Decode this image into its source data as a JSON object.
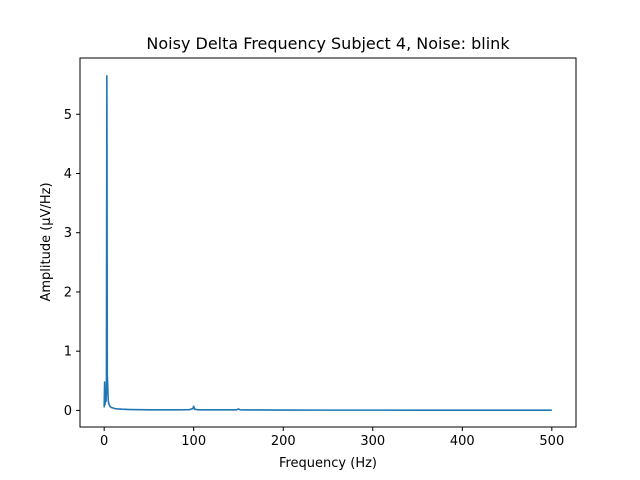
{
  "chart_data": {
    "type": "line",
    "title": "Noisy Delta Frequency Subject 4, Noise: blink",
    "xlabel": "Frequency (Hz)",
    "ylabel": "Amplitude (μV/Hz)",
    "xlim": [
      -27,
      527
    ],
    "ylim": [
      -0.28,
      5.95
    ],
    "xticks": [
      0,
      100,
      200,
      300,
      400,
      500
    ],
    "yticks": [
      0,
      1,
      2,
      3,
      4,
      5
    ],
    "grid": false,
    "legend": "none",
    "series": [
      {
        "color": "#1f77b4",
        "x": [
          0,
          0.5,
          1,
          1.5,
          2,
          2.5,
          3,
          3.5,
          4,
          4.5,
          5,
          6,
          7,
          8,
          10,
          12,
          15,
          20,
          30,
          40,
          50,
          60,
          80,
          95,
          99,
          100,
          101,
          105,
          120,
          130,
          140,
          148,
          150,
          152,
          160,
          200,
          250,
          300,
          350,
          400,
          450,
          500
        ],
        "y": [
          0.05,
          0.48,
          0.1,
          0.35,
          0.15,
          0.3,
          5.65,
          0.6,
          0.4,
          0.18,
          0.12,
          0.08,
          0.06,
          0.05,
          0.04,
          0.03,
          0.025,
          0.02,
          0.015,
          0.012,
          0.01,
          0.01,
          0.01,
          0.012,
          0.03,
          0.07,
          0.02,
          0.01,
          0.01,
          0.01,
          0.01,
          0.01,
          0.025,
          0.01,
          0.008,
          0.006,
          0.005,
          0.005,
          0.004,
          0.004,
          0.004,
          0.004
        ]
      }
    ]
  }
}
